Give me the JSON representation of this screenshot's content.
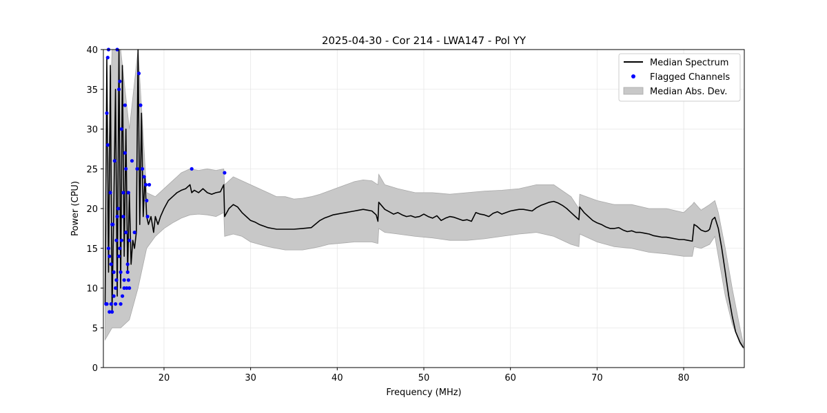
{
  "chart_data": {
    "type": "line",
    "title": "2025-04-30 - Cor 214 - LWA147 - Pol YY",
    "xlabel": "Frequency (MHz)",
    "ylabel": "Power (CPU)",
    "xlim": [
      13,
      87
    ],
    "ylim": [
      0,
      40
    ],
    "xticks": [
      20,
      30,
      40,
      50,
      60,
      70,
      80
    ],
    "yticks": [
      0,
      5,
      10,
      15,
      20,
      25,
      30,
      35,
      40
    ],
    "grid": true,
    "legend_position": "top-right",
    "series": [
      {
        "name": "Median Spectrum",
        "kind": "line",
        "color": "#000000",
        "x": [
          13.2,
          13.4,
          13.6,
          13.8,
          14.0,
          14.2,
          14.4,
          14.6,
          14.8,
          15.0,
          15.2,
          15.4,
          15.6,
          15.8,
          16.0,
          16.2,
          16.4,
          16.6,
          16.8,
          17.0,
          17.2,
          17.4,
          17.6,
          17.8,
          18.0,
          18.2,
          18.5,
          18.8,
          19.0,
          19.3,
          19.6,
          20.0,
          20.5,
          21.0,
          21.5,
          22.0,
          22.5,
          23.0,
          23.2,
          23.5,
          24.0,
          24.5,
          25.0,
          25.5,
          26.0,
          26.5,
          26.9,
          27.0,
          27.5,
          28.0,
          28.5,
          29.0,
          29.5,
          30.0,
          30.5,
          31.0,
          31.5,
          32.0,
          32.5,
          33.0,
          34.0,
          35.0,
          36.0,
          37.0,
          38.0,
          38.5,
          39.0,
          39.5,
          40.0,
          40.5,
          41.0,
          41.5,
          42.0,
          42.5,
          43.0,
          43.5,
          44.0,
          44.5,
          44.7,
          44.8,
          45.5,
          46.0,
          46.5,
          47.0,
          47.5,
          48.0,
          48.5,
          49.0,
          49.5,
          50.0,
          50.5,
          51.0,
          51.5,
          52.0,
          52.5,
          53.0,
          53.5,
          54.0,
          54.5,
          55.0,
          55.5,
          56.0,
          56.5,
          57.0,
          57.5,
          58.0,
          58.5,
          59.0,
          59.5,
          60.0,
          60.5,
          61.0,
          61.5,
          62.0,
          62.5,
          63.0,
          63.5,
          64.0,
          64.5,
          65.0,
          65.5,
          66.0,
          66.5,
          67.0,
          67.5,
          67.9,
          68.0,
          68.5,
          69.0,
          69.5,
          70.0,
          70.5,
          71.0,
          71.5,
          72.0,
          72.5,
          73.0,
          73.5,
          74.0,
          74.5,
          75.0,
          75.5,
          76.0,
          76.5,
          77.0,
          77.5,
          78.0,
          78.5,
          79.0,
          79.5,
          80.0,
          80.5,
          81.0,
          81.2,
          81.5,
          82.0,
          82.5,
          82.8,
          83.0,
          83.3,
          83.6,
          84.0,
          84.4,
          84.8,
          85.2,
          85.6,
          86.0,
          86.5,
          86.9
        ],
        "y": [
          8,
          39,
          12,
          38,
          7,
          20,
          35,
          9,
          40,
          10,
          38,
          14,
          30,
          12,
          22,
          13,
          16,
          15,
          17,
          40,
          18,
          32,
          19,
          24,
          19,
          18,
          19,
          17,
          19,
          18,
          19,
          20,
          21,
          21.5,
          22,
          22.3,
          22.5,
          23,
          22,
          22.3,
          22,
          22.5,
          22,
          21.8,
          22,
          22.1,
          23,
          19,
          20,
          20.5,
          20.2,
          19.5,
          19,
          18.5,
          18.3,
          18,
          17.8,
          17.6,
          17.5,
          17.4,
          17.4,
          17.4,
          17.5,
          17.6,
          18.5,
          18.8,
          19,
          19.2,
          19.3,
          19.4,
          19.5,
          19.6,
          19.7,
          19.8,
          19.9,
          19.8,
          19.7,
          19.2,
          18.4,
          20.8,
          19.9,
          19.6,
          19.3,
          19.5,
          19.2,
          19,
          19.1,
          18.9,
          19,
          19.3,
          19,
          18.8,
          19.1,
          18.5,
          18.8,
          19,
          18.9,
          18.7,
          18.5,
          18.6,
          18.4,
          19.5,
          19.3,
          19.2,
          19,
          19.4,
          19.6,
          19.3,
          19.5,
          19.7,
          19.8,
          19.9,
          19.9,
          19.8,
          19.7,
          20.1,
          20.4,
          20.6,
          20.8,
          20.9,
          20.7,
          20.4,
          20,
          19.5,
          19,
          18.6,
          20.2,
          19.5,
          19,
          18.5,
          18.2,
          18,
          17.7,
          17.5,
          17.5,
          17.6,
          17.3,
          17.1,
          17.2,
          17,
          17,
          16.9,
          16.8,
          16.6,
          16.5,
          16.4,
          16.4,
          16.3,
          16.2,
          16.1,
          16.1,
          16,
          15.9,
          18,
          17.8,
          17.3,
          17.1,
          17.2,
          17.4,
          18.6,
          18.9,
          17.5,
          15,
          12,
          9,
          6.5,
          4.5,
          3.2,
          2.5
        ]
      },
      {
        "name": "Flagged Channels",
        "kind": "scatter",
        "color": "#0000ff",
        "x": [
          13.3,
          13.4,
          13.5,
          13.6,
          13.7,
          13.8,
          13.9,
          14.0,
          14.1,
          14.2,
          14.3,
          14.4,
          14.5,
          14.6,
          14.7,
          14.8,
          14.9,
          15.0,
          15.1,
          15.2,
          15.3,
          15.4,
          15.5,
          15.6,
          15.7,
          15.8,
          15.9,
          16.0,
          16.3,
          16.6,
          16.9,
          17.1,
          17.3,
          17.5,
          17.7,
          17.9,
          18.0,
          18.1,
          18.3,
          23.2,
          27.0,
          13.5,
          14.0,
          14.5,
          15.0,
          15.5,
          16.0,
          13.6,
          14.2,
          14.8,
          15.3,
          15.8,
          13.4,
          13.9,
          14.4,
          14.9,
          15.4,
          15.9,
          13.7,
          14.6,
          15.1,
          15.6
        ],
        "y": [
          8,
          32,
          28,
          40,
          14,
          22,
          8,
          7,
          18,
          12,
          26,
          10,
          16,
          40,
          20,
          35,
          15,
          12,
          30,
          9,
          19,
          11,
          33,
          17,
          10,
          13,
          22,
          10,
          26,
          17,
          25,
          37,
          33,
          25,
          24,
          23,
          21,
          19,
          23,
          25,
          24.5,
          39,
          18,
          11,
          8,
          27,
          16,
          15,
          9,
          14,
          22,
          12,
          8,
          13,
          8,
          36,
          10,
          11,
          7,
          19,
          16,
          25
        ]
      },
      {
        "name": "Median Abs. Dev.",
        "kind": "band",
        "color": "#c8c8c8",
        "x": [
          13.2,
          14.0,
          15.0,
          16.0,
          17.0,
          18.0,
          19.0,
          20.0,
          21.0,
          22.0,
          23.0,
          24.0,
          25.0,
          26.0,
          26.9,
          27.0,
          28.0,
          29.0,
          30.0,
          31.0,
          32.0,
          33.0,
          34.0,
          35.0,
          36.0,
          37.0,
          38.0,
          39.0,
          40.0,
          41.0,
          42.0,
          43.0,
          44.0,
          44.7,
          44.8,
          45.5,
          47.0,
          49.0,
          51.0,
          53.0,
          55.0,
          57.0,
          59.0,
          61.0,
          63.0,
          65.0,
          67.0,
          67.9,
          68.0,
          70.0,
          72.0,
          74.0,
          76.0,
          78.0,
          80.0,
          81.0,
          81.2,
          82.0,
          83.0,
          83.6,
          84.0,
          84.8,
          85.6,
          86.5,
          86.9
        ],
        "lower": [
          3.5,
          5,
          5,
          6,
          10,
          15,
          16.5,
          17.5,
          18.2,
          18.8,
          19.2,
          19.3,
          19.2,
          19,
          19.5,
          16.5,
          16.8,
          16.5,
          15.8,
          15.5,
          15.2,
          15,
          14.8,
          14.8,
          14.8,
          15,
          15.2,
          15.5,
          15.6,
          15.7,
          15.8,
          15.8,
          15.8,
          15.6,
          17.5,
          17,
          16.8,
          16.5,
          16.3,
          16,
          16,
          16.2,
          16.5,
          16.8,
          17,
          16.5,
          15.5,
          15.2,
          16.8,
          15.8,
          15.2,
          15,
          14.5,
          14.3,
          14,
          14,
          15.2,
          15,
          15.5,
          16.5,
          14,
          9,
          5.5,
          3,
          2.4
        ],
        "upper": [
          12,
          40,
          40,
          30,
          40,
          22,
          21.5,
          22.5,
          23.5,
          24.5,
          25,
          24.8,
          25,
          24.8,
          25,
          23,
          24,
          23.5,
          23,
          22.5,
          22,
          21.5,
          21.5,
          21.2,
          21.3,
          21.5,
          21.8,
          22.2,
          22.6,
          23,
          23.4,
          23.6,
          23.5,
          23,
          24.3,
          23,
          22.5,
          22,
          22,
          21.8,
          22,
          22.2,
          22.3,
          22.5,
          23,
          23,
          21.5,
          20,
          21.8,
          21,
          20.5,
          20.5,
          20,
          20,
          19.5,
          20.5,
          20.8,
          19.8,
          20.5,
          21,
          19.5,
          15,
          10,
          5,
          3
        ]
      }
    ]
  }
}
